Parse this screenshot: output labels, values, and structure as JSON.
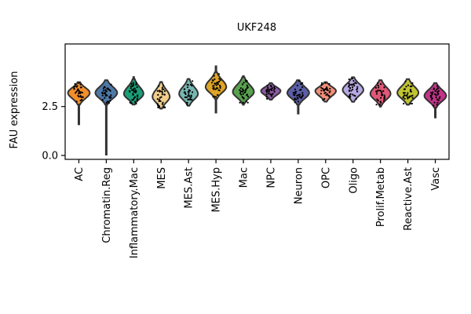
{
  "chart_data": {
    "type": "violin",
    "title": "UKF248",
    "xlabel": "",
    "ylabel": "FAU expression",
    "ylim": [
      -0.2,
      5.7
    ],
    "yticks": [
      0.0,
      2.5
    ],
    "ytick_labels": [
      "0.0",
      "2.5"
    ],
    "grid": false,
    "legend": "none",
    "categories": [
      "AC",
      "Chromatin.Reg",
      "Inflammatory.Mac",
      "MES",
      "MES.Ast",
      "MES.Hyp",
      "Mac",
      "NPC",
      "Neuron",
      "OPC",
      "Oligo",
      "Prolif.Metab",
      "Reactive.Ast",
      "Vasc"
    ],
    "colors": [
      "#f28e2b",
      "#4e79a7",
      "#1b9e77",
      "#f1ce8b",
      "#76b7b2",
      "#e0a526",
      "#59a14f",
      "#8e5aa4",
      "#5b5ea6",
      "#f28e79",
      "#b7a9e3",
      "#e15777",
      "#c0c431",
      "#c2348a"
    ],
    "violins": [
      {
        "name": "AC",
        "min": 1.55,
        "max": 3.75,
        "center": 3.2,
        "width": 0.95
      },
      {
        "name": "Chromatin.Reg",
        "min": 0.0,
        "max": 3.85,
        "center": 3.2,
        "width": 0.95
      },
      {
        "name": "Inflammatory.Mac",
        "min": 2.6,
        "max": 4.05,
        "center": 3.15,
        "width": 0.85
      },
      {
        "name": "MES",
        "min": 2.35,
        "max": 3.8,
        "center": 3.0,
        "width": 0.75
      },
      {
        "name": "MES.Ast",
        "min": 2.5,
        "max": 3.95,
        "center": 3.15,
        "width": 0.82
      },
      {
        "name": "MES.Hyp",
        "min": 2.15,
        "max": 4.6,
        "center": 3.5,
        "width": 0.9
      },
      {
        "name": "Mac",
        "min": 2.55,
        "max": 4.1,
        "center": 3.25,
        "width": 0.92
      },
      {
        "name": "NPC",
        "min": 2.85,
        "max": 3.7,
        "center": 3.3,
        "width": 0.85
      },
      {
        "name": "Neuron",
        "min": 2.1,
        "max": 3.85,
        "center": 3.2,
        "width": 0.95
      },
      {
        "name": "OPC",
        "min": 2.75,
        "max": 3.75,
        "center": 3.3,
        "width": 0.9
      },
      {
        "name": "Oligo",
        "min": 2.7,
        "max": 4.0,
        "center": 3.35,
        "width": 0.9
      },
      {
        "name": "Prolif.Metab",
        "min": 2.45,
        "max": 3.85,
        "center": 3.15,
        "width": 0.88
      },
      {
        "name": "Reactive.Ast",
        "min": 2.55,
        "max": 3.9,
        "center": 3.2,
        "width": 0.92
      },
      {
        "name": "Vasc",
        "min": 1.9,
        "max": 3.7,
        "center": 3.05,
        "width": 0.95
      }
    ]
  }
}
